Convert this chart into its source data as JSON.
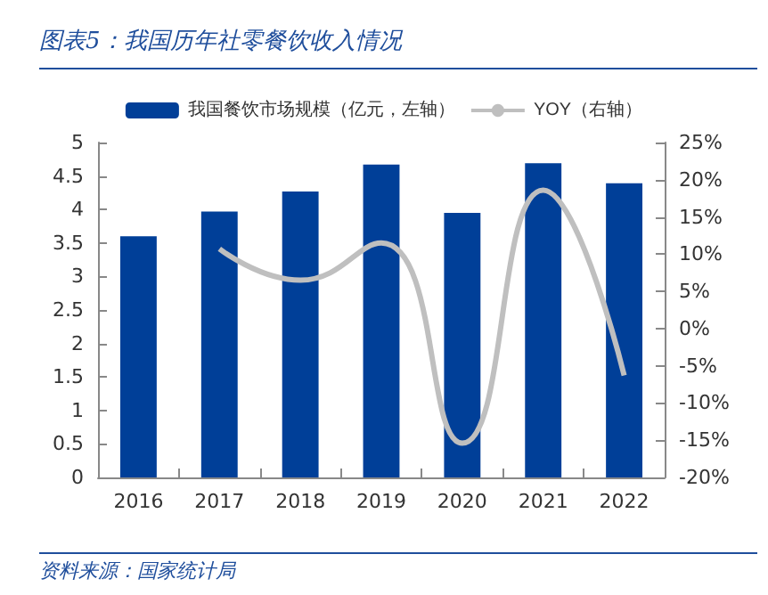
{
  "chart_data": {
    "type": "bar",
    "title": "图表5：我国历年社零餐饮收入情况",
    "categories": [
      "2016",
      "2017",
      "2018",
      "2019",
      "2020",
      "2021",
      "2022"
    ],
    "series": [
      {
        "name": "我国餐饮市场规模（亿元，左轴）",
        "color": "#003f98",
        "values": [
          3.6,
          3.97,
          4.27,
          4.67,
          3.95,
          4.69,
          4.39
        ]
      },
      {
        "name": "YOY（右轴）",
        "type": "line",
        "axis": "y2",
        "color": "#bfbfbf",
        "values": [
          null,
          10.7,
          6.5,
          11.5,
          -15.4,
          18.6,
          -6.3
        ]
      }
    ],
    "ylim": [
      0,
      5
    ],
    "yticks": [
      0,
      0.5,
      1,
      1.5,
      2,
      2.5,
      3,
      3.5,
      4,
      4.5,
      5
    ],
    "y2lim": [
      -20,
      25
    ],
    "y2ticks": [
      {
        "value": -20,
        "label": "-20%"
      },
      {
        "value": -15,
        "label": "-15%"
      },
      {
        "value": -10,
        "label": "-10%"
      },
      {
        "value": -5,
        "label": "-5%"
      },
      {
        "value": 0,
        "label": "0%"
      },
      {
        "value": 5,
        "label": "5%"
      },
      {
        "value": 10,
        "label": "10%"
      },
      {
        "value": 15,
        "label": "15%"
      },
      {
        "value": 20,
        "label": "20%"
      },
      {
        "value": 25,
        "label": "25%"
      }
    ],
    "grid": false,
    "legend": "top",
    "marker": "none",
    "annotations": [
      "资料来源：国家统计局"
    ]
  }
}
